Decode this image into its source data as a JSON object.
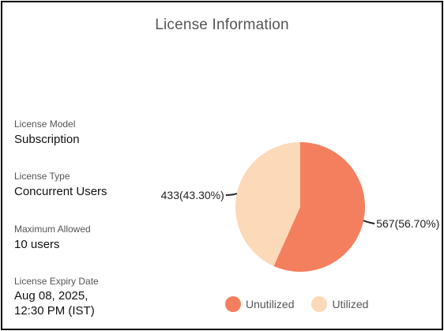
{
  "title": "License Information",
  "fields": {
    "model": {
      "label": "License Model",
      "value": "Subscription"
    },
    "type": {
      "label": "License Type",
      "value": "Concurrent Users"
    },
    "max": {
      "label": "Maximum Allowed",
      "value": "10 users"
    },
    "expiry": {
      "label": "License Expiry Date",
      "value_line1": "Aug 08, 2025,",
      "value_line2": "12:30 PM (IST)"
    }
  },
  "colors": {
    "unutilized": "#f47f5e",
    "utilized": "#fcd9b8"
  },
  "chart_data": {
    "type": "pie",
    "title": "",
    "categories": [
      "Unutilized",
      "Utilized"
    ],
    "values": [
      567,
      433
    ],
    "data_labels": [
      "567(56.70%)",
      "433(43.30%)"
    ],
    "legend_position": "bottom"
  },
  "legend": [
    {
      "label": "Unutilized"
    },
    {
      "label": "Utilized"
    }
  ]
}
